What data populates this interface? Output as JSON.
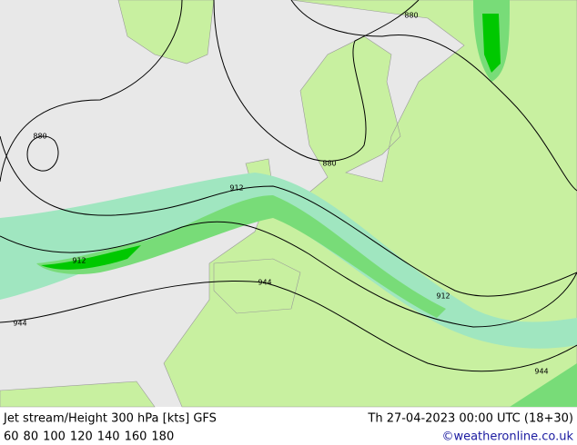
{
  "header": {
    "title": "Jet stream/Height 300 hPa [kts] GFS",
    "valid_time": "Th 27-04-2023 00:00 UTC (18+30)",
    "credit": "©weatheronline.co.uk"
  },
  "legend": [
    {
      "label": "60",
      "color": "#b4f0b4"
    },
    {
      "label": "80",
      "color": "#78dc78"
    },
    {
      "label": "100",
      "color": "#00c800"
    },
    {
      "label": "120",
      "color": "#c8c800"
    },
    {
      "label": "140",
      "color": "#e6a000"
    },
    {
      "label": "160",
      "color": "#e66400"
    },
    {
      "label": "180",
      "color": "#dc1e1e"
    }
  ],
  "contour_labels": [
    "880",
    "880",
    "880",
    "912",
    "912",
    "912",
    "944",
    "944",
    "944"
  ]
}
